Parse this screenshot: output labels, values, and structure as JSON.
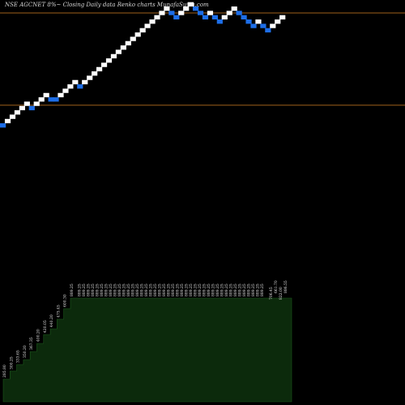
{
  "title": "NSE AGCNET 8%~  Closing Daily data  Renko  charts MunafaSutra.com",
  "chart_data": {
    "type": "renko",
    "brick_size": 15,
    "ylim": [
      -290,
      1115
    ],
    "reference_lines": [
      1070,
      750
    ],
    "bricks": [
      {
        "value": 680,
        "dir": "down"
      },
      {
        "value": 695,
        "dir": "up"
      },
      {
        "value": 710,
        "dir": "up"
      },
      {
        "value": 725,
        "dir": "up"
      },
      {
        "value": 740,
        "dir": "up"
      },
      {
        "value": 755,
        "dir": "up"
      },
      {
        "value": 740,
        "dir": "down"
      },
      {
        "value": 755,
        "dir": "up"
      },
      {
        "value": 770,
        "dir": "up"
      },
      {
        "value": 785,
        "dir": "up"
      },
      {
        "value": 770,
        "dir": "down"
      },
      {
        "value": 770,
        "dir": "down"
      },
      {
        "value": 785,
        "dir": "up"
      },
      {
        "value": 800,
        "dir": "up"
      },
      {
        "value": 815,
        "dir": "up"
      },
      {
        "value": 830,
        "dir": "up"
      },
      {
        "value": 815,
        "dir": "down"
      },
      {
        "value": 830,
        "dir": "up"
      },
      {
        "value": 845,
        "dir": "up"
      },
      {
        "value": 860,
        "dir": "up"
      },
      {
        "value": 875,
        "dir": "up"
      },
      {
        "value": 890,
        "dir": "up"
      },
      {
        "value": 905,
        "dir": "up"
      },
      {
        "value": 920,
        "dir": "up"
      },
      {
        "value": 935,
        "dir": "up"
      },
      {
        "value": 950,
        "dir": "up"
      },
      {
        "value": 965,
        "dir": "up"
      },
      {
        "value": 980,
        "dir": "up"
      },
      {
        "value": 995,
        "dir": "up"
      },
      {
        "value": 1010,
        "dir": "up"
      },
      {
        "value": 1025,
        "dir": "up"
      },
      {
        "value": 1040,
        "dir": "up"
      },
      {
        "value": 1055,
        "dir": "up"
      },
      {
        "value": 1070,
        "dir": "up"
      },
      {
        "value": 1085,
        "dir": "up"
      },
      {
        "value": 1070,
        "dir": "down"
      },
      {
        "value": 1055,
        "dir": "down"
      },
      {
        "value": 1070,
        "dir": "up"
      },
      {
        "value": 1085,
        "dir": "up"
      },
      {
        "value": 1100,
        "dir": "up"
      },
      {
        "value": 1085,
        "dir": "down"
      },
      {
        "value": 1070,
        "dir": "down"
      },
      {
        "value": 1055,
        "dir": "down"
      },
      {
        "value": 1070,
        "dir": "up"
      },
      {
        "value": 1055,
        "dir": "down"
      },
      {
        "value": 1040,
        "dir": "down"
      },
      {
        "value": 1055,
        "dir": "up"
      },
      {
        "value": 1070,
        "dir": "up"
      },
      {
        "value": 1085,
        "dir": "up"
      },
      {
        "value": 1070,
        "dir": "down"
      },
      {
        "value": 1055,
        "dir": "down"
      },
      {
        "value": 1040,
        "dir": "down"
      },
      {
        "value": 1025,
        "dir": "down"
      },
      {
        "value": 1040,
        "dir": "up"
      },
      {
        "value": 1025,
        "dir": "down"
      },
      {
        "value": 1010,
        "dir": "down"
      },
      {
        "value": 1025,
        "dir": "up"
      },
      {
        "value": 1040,
        "dir": "up"
      },
      {
        "value": 1055,
        "dir": "up"
      }
    ],
    "volume_panel": {
      "steps": [
        {
          "value": 28,
          "label": "285.80"
        },
        {
          "value": 38,
          "label": "300.25"
        },
        {
          "value": 46,
          "label": "333.65"
        },
        {
          "value": 52,
          "label": "350.20"
        },
        {
          "value": 62,
          "label": "367.35"
        },
        {
          "value": 72,
          "label": "400.20"
        },
        {
          "value": 83,
          "label": "420.05"
        },
        {
          "value": 90,
          "label": "440.20"
        },
        {
          "value": 102,
          "label": "475.45"
        },
        {
          "value": 115,
          "label": "600.30"
        },
        {
          "value": 128,
          "label": "889.25"
        }
      ],
      "tail_labels": [
        "706.45",
        "661.70",
        "822.00",
        "886.55"
      ]
    }
  }
}
